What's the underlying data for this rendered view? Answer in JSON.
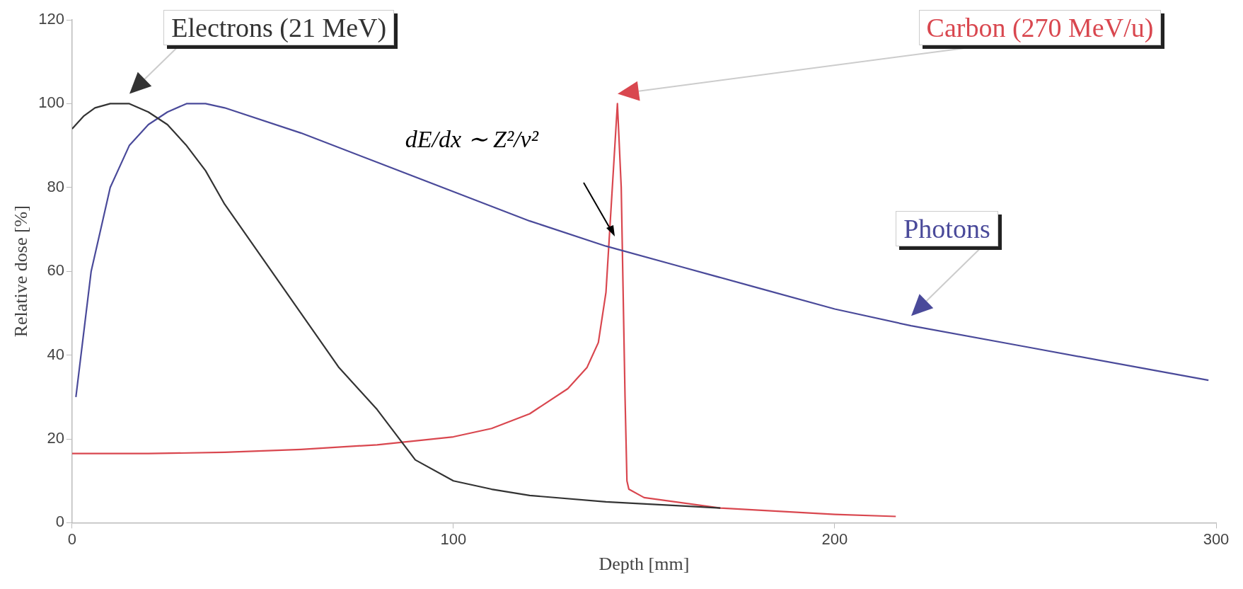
{
  "chart_data": {
    "type": "line",
    "xlabel": "Depth [mm]",
    "ylabel": "Relative dose [%]",
    "xlim": [
      0,
      300
    ],
    "ylim": [
      0,
      120
    ],
    "xticks": [
      0,
      100,
      200,
      300
    ],
    "yticks": [
      0,
      20,
      40,
      60,
      80,
      100,
      120
    ],
    "grid": false,
    "legend": false,
    "marker": "none",
    "line_style": "solid",
    "series": [
      {
        "name": "Electrons (21 MeV)",
        "color": "#333333",
        "x": [
          0,
          3,
          6,
          10,
          15,
          20,
          25,
          30,
          35,
          40,
          50,
          60,
          70,
          80,
          90,
          100,
          110,
          120,
          140,
          160,
          170
        ],
        "values": [
          94,
          97,
          99,
          100,
          100,
          98,
          95,
          90,
          84,
          76,
          63,
          50,
          37,
          27,
          15,
          10,
          8,
          6.5,
          5,
          4,
          3.5
        ]
      },
      {
        "name": "Photons",
        "color": "#4a4a9a",
        "x": [
          1,
          3,
          5,
          8,
          10,
          15,
          20,
          25,
          30,
          35,
          40,
          60,
          80,
          100,
          120,
          140,
          160,
          180,
          200,
          220,
          250,
          280,
          298
        ],
        "values": [
          30,
          45,
          60,
          72,
          80,
          90,
          95,
          98,
          100,
          100,
          99,
          93,
          86,
          79,
          72,
          66,
          61,
          56,
          51,
          47,
          42,
          37,
          34
        ]
      },
      {
        "name": "Carbon (270 MeV/u)",
        "color": "#d9474f",
        "x": [
          0,
          20,
          40,
          60,
          80,
          100,
          110,
          120,
          130,
          135,
          138,
          140,
          141,
          142,
          143,
          144,
          145,
          145.5,
          146,
          150,
          170,
          200,
          216
        ],
        "values": [
          16.5,
          16.5,
          16.8,
          17.5,
          18.6,
          20.5,
          22.5,
          26,
          32,
          37,
          43,
          55,
          70,
          85,
          100,
          80,
          30,
          10,
          8,
          6,
          3.5,
          2,
          1.5
        ]
      }
    ],
    "annotations": [
      "dE/dx ∼ Z²/v²"
    ]
  }
}
